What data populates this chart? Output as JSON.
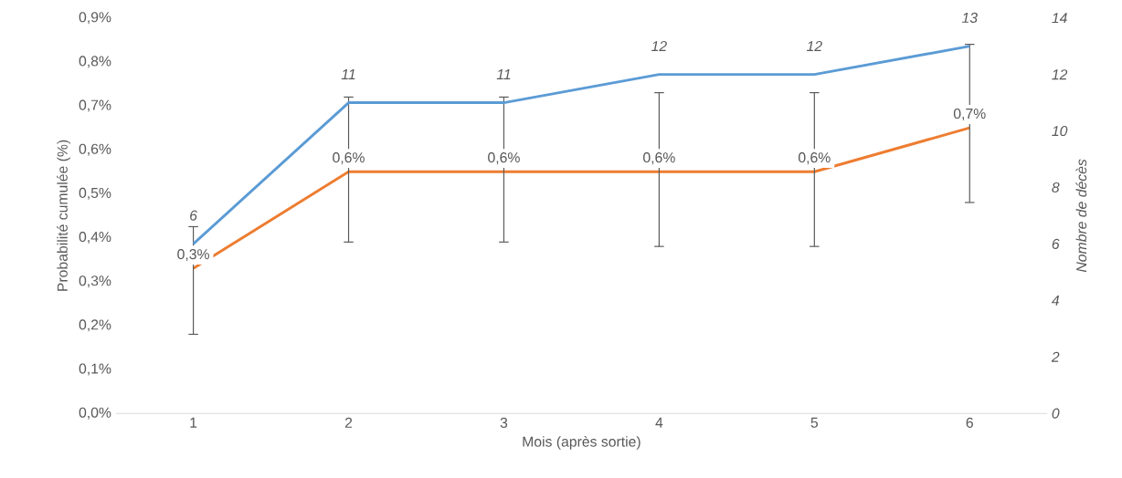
{
  "chart_data": {
    "type": "line",
    "categories": [
      "1",
      "2",
      "3",
      "4",
      "5",
      "6"
    ],
    "xlabel": "Mois (après sortie)",
    "ylabel": "Probabilité cumulée (%)",
    "y2label": "Nombre de décès",
    "ylim": [
      0,
      0.9
    ],
    "yticks": [
      {
        "value": 0,
        "label": "0,0%"
      },
      {
        "value": 0.1,
        "label": "0,1%"
      },
      {
        "value": 0.2,
        "label": "0,2%"
      },
      {
        "value": 0.3,
        "label": "0,3%"
      },
      {
        "value": 0.4,
        "label": "0,4%"
      },
      {
        "value": 0.5,
        "label": "0,5%"
      },
      {
        "value": 0.6,
        "label": "0,6%"
      },
      {
        "value": 0.7,
        "label": "0,7%"
      },
      {
        "value": 0.8,
        "label": "0,8%"
      },
      {
        "value": 0.9,
        "label": "0,9%"
      }
    ],
    "y2lim": [
      0,
      14
    ],
    "y2ticks": [
      0,
      2,
      4,
      6,
      8,
      10,
      12,
      14
    ],
    "grid": false,
    "marker": "none",
    "line_style": "solid",
    "series": [
      {
        "color": "#ed7d31",
        "values": [
          0.33,
          0.55,
          0.55,
          0.55,
          0.55,
          0.65
        ],
        "value_labels": [
          "0,3%",
          "0,6%",
          "0,6%",
          "0,6%",
          "0,6%",
          "0,7%"
        ],
        "errors": [
          [
            0.18,
            0.425
          ],
          [
            0.39,
            0.72
          ],
          [
            0.39,
            0.72
          ],
          [
            0.38,
            0.73
          ],
          [
            0.38,
            0.73
          ],
          [
            0.48,
            0.84
          ]
        ]
      },
      {
        "color": "#5b9bd5",
        "axis": "y2",
        "values": [
          6,
          11,
          11,
          12,
          12,
          13
        ],
        "value_labels": [
          "6",
          "11",
          "11",
          "12",
          "12",
          "13"
        ]
      }
    ]
  }
}
